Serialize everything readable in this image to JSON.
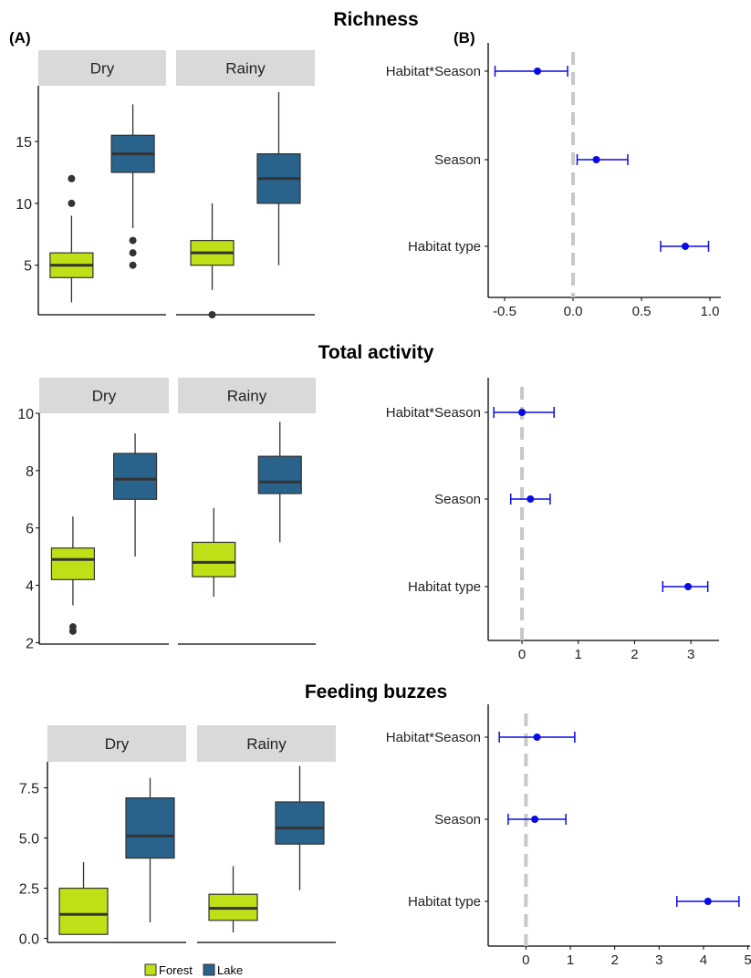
{
  "panel_labels": {
    "a": "(A)",
    "b": "(B)"
  },
  "legend": {
    "entries": [
      {
        "label": "Forest",
        "color": "#bfe016"
      },
      {
        "label": "Lake",
        "color": "#29628a"
      }
    ]
  },
  "colors": {
    "forest": "#bfe016",
    "lake": "#29628a",
    "facet_strip": "#d9d9d9",
    "point": "#0a0ae6",
    "zero_line": "#c8c8c8"
  },
  "chart_data": [
    {
      "type": "box",
      "title": "Richness",
      "facets": [
        "Dry",
        "Rainy"
      ],
      "groups": [
        "Forest",
        "Lake"
      ],
      "ylim": [
        1,
        19.5
      ],
      "yticks": [
        5,
        10,
        15
      ],
      "ytick_labels": [
        "5",
        "10",
        "15"
      ],
      "boxes": {
        "Dry": {
          "Forest": {
            "min": 2,
            "q1": 4,
            "median": 5,
            "q3": 6,
            "max": 9,
            "outliers": [
              10,
              12
            ]
          },
          "Lake": {
            "min": 8,
            "q1": 12.5,
            "median": 14,
            "q3": 15.5,
            "max": 18,
            "outliers": [
              5,
              6,
              7
            ]
          }
        },
        "Rainy": {
          "Forest": {
            "min": 3,
            "q1": 5,
            "median": 6,
            "q3": 7,
            "max": 10,
            "outliers": [
              1
            ]
          },
          "Lake": {
            "min": 5,
            "q1": 10,
            "median": 12,
            "q3": 14,
            "max": 19,
            "outliers": []
          }
        }
      }
    },
    {
      "type": "coefficient",
      "title": "",
      "terms": [
        "Habitat*Season",
        "Season",
        "Habitat type"
      ],
      "estimates": [
        -0.26,
        0.17,
        0.82
      ],
      "ci_low": [
        -0.57,
        0.03,
        0.64
      ],
      "ci_high": [
        -0.04,
        0.4,
        0.99
      ],
      "xlim": [
        -0.62,
        1.08
      ],
      "xticks": [
        -0.5,
        0,
        0.5,
        1
      ],
      "xtick_labels": [
        "-0.5",
        "0.0",
        "0.5",
        "1.0"
      ]
    },
    {
      "type": "box",
      "title": "Total activity",
      "facets": [
        "Dry",
        "Rainy"
      ],
      "groups": [
        "Forest",
        "Lake"
      ],
      "ylim": [
        1.95,
        10
      ],
      "yticks": [
        2,
        4,
        6,
        8,
        10
      ],
      "ytick_labels": [
        "2",
        "4",
        "6",
        "8",
        "10"
      ],
      "boxes": {
        "Dry": {
          "Forest": {
            "min": 3.3,
            "q1": 4.2,
            "median": 4.9,
            "q3": 5.3,
            "max": 6.4,
            "outliers": [
              2.4,
              2.55
            ]
          },
          "Lake": {
            "min": 5,
            "q1": 7,
            "median": 7.7,
            "q3": 8.6,
            "max": 9.3,
            "outliers": []
          }
        },
        "Rainy": {
          "Forest": {
            "min": 3.6,
            "q1": 4.3,
            "median": 4.8,
            "q3": 5.5,
            "max": 6.7,
            "outliers": []
          },
          "Lake": {
            "min": 5.5,
            "q1": 7.2,
            "median": 7.6,
            "q3": 8.5,
            "max": 9.7,
            "outliers": []
          }
        }
      }
    },
    {
      "type": "coefficient",
      "title": "",
      "terms": [
        "Habitat*Season",
        "Season",
        "Habitat type"
      ],
      "estimates": [
        0,
        0.15,
        2.95
      ],
      "ci_low": [
        -0.5,
        -0.2,
        2.5
      ],
      "ci_high": [
        0.57,
        0.5,
        3.3
      ],
      "xlim": [
        -0.6,
        3.5
      ],
      "xticks": [
        0,
        1,
        2,
        3
      ],
      "xtick_labels": [
        "0",
        "1",
        "2",
        "3"
      ]
    },
    {
      "type": "box",
      "title": "Feeding buzzes",
      "facets": [
        "Dry",
        "Rainy"
      ],
      "groups": [
        "Forest",
        "Lake"
      ],
      "ylim": [
        -0.2,
        8.8
      ],
      "yticks": [
        0,
        2.5,
        5,
        7.5
      ],
      "ytick_labels": [
        "0.0",
        "2.5",
        "5.0",
        "7.5"
      ],
      "boxes": {
        "Dry": {
          "Forest": {
            "min": 0.2,
            "q1": 0.2,
            "median": 1.2,
            "q3": 2.5,
            "max": 3.8,
            "outliers": []
          },
          "Lake": {
            "min": 0.8,
            "q1": 4,
            "median": 5.1,
            "q3": 7,
            "max": 8,
            "outliers": []
          }
        },
        "Rainy": {
          "Forest": {
            "min": 0.3,
            "q1": 0.9,
            "median": 1.5,
            "q3": 2.2,
            "max": 3.6,
            "outliers": []
          },
          "Lake": {
            "min": 2.4,
            "q1": 4.7,
            "median": 5.5,
            "q3": 6.8,
            "max": 8.6,
            "outliers": []
          }
        }
      }
    },
    {
      "type": "coefficient",
      "title": "",
      "terms": [
        "Habitat*Season",
        "Season",
        "Habitat type"
      ],
      "estimates": [
        0.25,
        0.2,
        4.1
      ],
      "ci_low": [
        -0.6,
        -0.4,
        3.4
      ],
      "ci_high": [
        1.1,
        0.9,
        4.8
      ],
      "xlim": [
        -0.85,
        5.05
      ],
      "xticks": [
        0,
        1,
        2,
        3,
        4,
        5
      ],
      "xtick_labels": [
        "0",
        "1",
        "2",
        "3",
        "4",
        "5"
      ]
    }
  ]
}
